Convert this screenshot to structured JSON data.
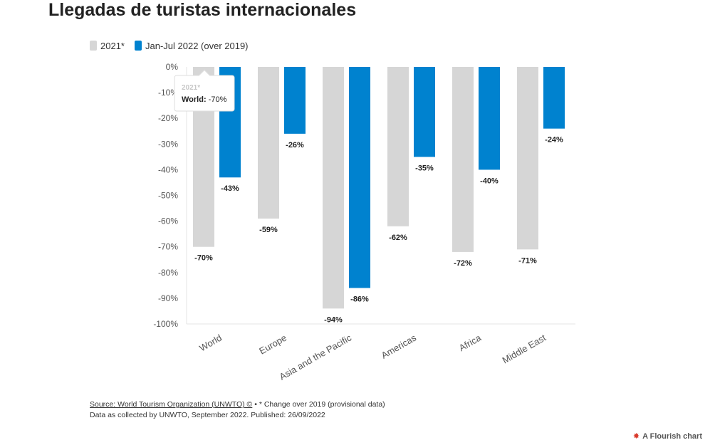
{
  "title": "Llegadas de turistas internacionales",
  "legend": [
    {
      "label": "2021*",
      "color": "#d6d6d6"
    },
    {
      "label": "Jan-Jul 2022 (over 2019)",
      "color": "#0082cf"
    }
  ],
  "tooltip": {
    "series": "2021*",
    "category_label": "World:",
    "value_text": "-70%"
  },
  "footer": {
    "source_link": "Source: World Tourism Organization (UNWTO) ©",
    "source_rest": " • * Change over 2019 (provisional data)",
    "line2": "Data as collected by UNWTO, September 2022. Published: 26/09/2022"
  },
  "flourish_label": "A Flourish chart",
  "chart_data": {
    "type": "bar",
    "title": "Llegadas de turistas internacionales",
    "xlabel": "",
    "ylabel": "",
    "categories": [
      "World",
      "Europe",
      "Asia and the Pacific",
      "Americas",
      "Africa",
      "Middle East"
    ],
    "series": [
      {
        "name": "2021*",
        "color": "#d6d6d6",
        "values": [
          -70,
          -59,
          -94,
          -62,
          -72,
          -71
        ],
        "labels": [
          "-70%",
          "-59%",
          "-94%",
          "-62%",
          "-72%",
          "-71%"
        ]
      },
      {
        "name": "Jan-Jul 2022 (over 2019)",
        "color": "#0082cf",
        "values": [
          -43,
          -26,
          -86,
          -35,
          -40,
          -24
        ],
        "labels": [
          "-43%",
          "-26%",
          "-86%",
          "-35%",
          "-40%",
          "-24%"
        ]
      }
    ],
    "ylim": [
      -100,
      0
    ],
    "yticks": [
      0,
      -10,
      -20,
      -30,
      -40,
      -50,
      -60,
      -70,
      -80,
      -90,
      -100
    ],
    "ytick_labels": [
      "0%",
      "-10%",
      "-20%",
      "-30%",
      "-40%",
      "-50%",
      "-60%",
      "-70%",
      "-80%",
      "-90%",
      "-100%"
    ],
    "grid": false,
    "legend_position": "top-left"
  }
}
